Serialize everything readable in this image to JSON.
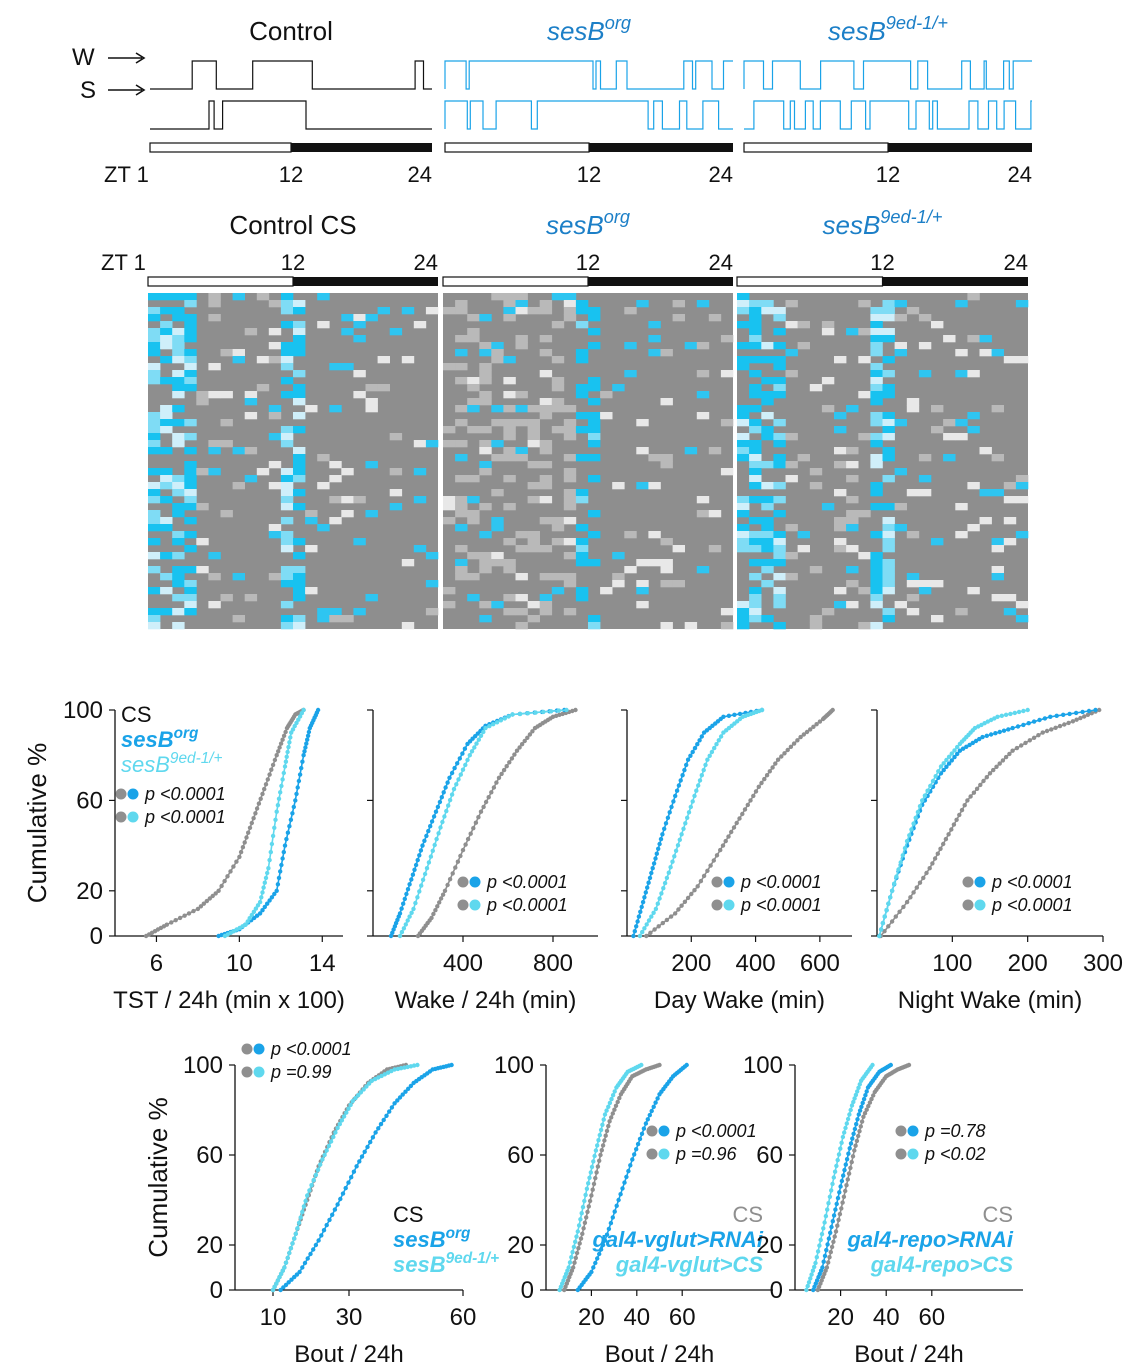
{
  "colors": {
    "control": "#111111",
    "ses_org": "#1aa3e8",
    "ses_9ed": "#5fd8ee",
    "cs_gray": "#8f8f8f",
    "heat_base": "#8e8e8e",
    "title_blue": "#1c7fc7"
  },
  "traces": {
    "titles": [
      {
        "main": "Control",
        "sup": ""
      },
      {
        "main": "sesB",
        "sup": "org"
      },
      {
        "main": "sesB",
        "sup": "9ed-1/+"
      }
    ],
    "w_label": "W",
    "s_label": "S",
    "zt_label": "ZT 1",
    "ticks": [
      "12",
      "24"
    ]
  },
  "heatmaps": {
    "titles": [
      {
        "main": "Control CS",
        "sup": ""
      },
      {
        "main": "sesB",
        "sup": "org"
      },
      {
        "main": "sesB",
        "sup": "9ed-1/+"
      }
    ],
    "zt_label": "ZT 1",
    "ticks": [
      "12",
      "24"
    ]
  },
  "legend_top": {
    "entries": [
      {
        "main": "CS",
        "sup": ""
      },
      {
        "main": "sesB",
        "sup": "org"
      },
      {
        "main": "sesB",
        "sup": "9ed-1/+"
      }
    ]
  },
  "chart_data": [
    {
      "type": "line",
      "panel": "TST",
      "xlabel": "TST / 24h (min x 100)",
      "ylabel": "Cumulative %",
      "xlim": [
        4,
        15
      ],
      "xticks": [
        6,
        10,
        14
      ],
      "ylim": [
        0,
        100
      ],
      "yticks": [
        0,
        20,
        60,
        100
      ],
      "stats": [
        "p <0.0001",
        "p <0.0001"
      ],
      "series": [
        {
          "name": "CS",
          "x": [
            5.5,
            6.5,
            8,
            9,
            10,
            10.6,
            11.2,
            11.8,
            12.3,
            12.7,
            13.1
          ],
          "y": [
            0,
            5,
            12,
            20,
            35,
            50,
            65,
            80,
            92,
            98,
            100
          ]
        },
        {
          "name": "sesB org",
          "x": [
            9,
            10,
            11,
            11.8,
            12.2,
            12.7,
            13.1,
            13.4,
            13.8
          ],
          "y": [
            0,
            3,
            10,
            20,
            40,
            60,
            80,
            92,
            100
          ]
        },
        {
          "name": "sesB 9ed-1/+",
          "x": [
            9.3,
            10.3,
            11,
            11.4,
            11.8,
            12.2,
            12.5,
            13.1
          ],
          "y": [
            0,
            5,
            15,
            30,
            55,
            75,
            90,
            100
          ]
        }
      ]
    },
    {
      "type": "line",
      "panel": "Wake",
      "xlabel": "Wake / 24h (min)",
      "ylabel": "",
      "xlim": [
        0,
        1000
      ],
      "xticks": [
        400,
        800
      ],
      "ylim": [
        0,
        100
      ],
      "yticks": [],
      "stats": [
        "p <0.0001",
        "p <0.0001"
      ],
      "series": [
        {
          "name": "CS",
          "x": [
            200,
            260,
            320,
            400,
            480,
            560,
            640,
            720,
            800,
            900
          ],
          "y": [
            0,
            8,
            20,
            38,
            55,
            70,
            82,
            92,
            97,
            100
          ]
        },
        {
          "name": "sesB org",
          "x": [
            80,
            120,
            170,
            220,
            280,
            340,
            420,
            500,
            620,
            850
          ],
          "y": [
            0,
            10,
            25,
            40,
            55,
            70,
            85,
            93,
            98,
            100
          ]
        },
        {
          "name": "sesB 9ed-1/+",
          "x": [
            120,
            180,
            240,
            300,
            360,
            430,
            500,
            620,
            860
          ],
          "y": [
            0,
            12,
            30,
            48,
            65,
            80,
            92,
            98,
            100
          ]
        }
      ]
    },
    {
      "type": "line",
      "panel": "Day Wake",
      "xlabel": "Day Wake (min)",
      "ylabel": "",
      "xlim": [
        0,
        700
      ],
      "xticks": [
        200,
        400,
        600
      ],
      "ylim": [
        0,
        100
      ],
      "yticks": [],
      "stats": [
        "p <0.0001",
        "p <0.0001"
      ],
      "series": [
        {
          "name": "CS",
          "x": [
            60,
            150,
            220,
            290,
            350,
            410,
            470,
            540,
            610,
            640
          ],
          "y": [
            0,
            10,
            22,
            38,
            52,
            66,
            78,
            88,
            96,
            100
          ]
        },
        {
          "name": "sesB org",
          "x": [
            20,
            50,
            80,
            110,
            150,
            190,
            240,
            300,
            420
          ],
          "y": [
            0,
            15,
            30,
            45,
            62,
            78,
            90,
            97,
            100
          ]
        },
        {
          "name": "sesB 9ed-1/+",
          "x": [
            40,
            90,
            130,
            170,
            210,
            250,
            300,
            360,
            420
          ],
          "y": [
            0,
            12,
            28,
            45,
            62,
            78,
            90,
            97,
            100
          ]
        }
      ]
    },
    {
      "type": "line",
      "panel": "Night Wake",
      "xlabel": "Night Wake (min)",
      "ylabel": "",
      "xlim": [
        0,
        300
      ],
      "xticks": [
        100,
        200,
        300
      ],
      "ylim": [
        0,
        100
      ],
      "yticks": [],
      "stats": [
        "p <0.0001",
        "p <0.0001"
      ],
      "series": [
        {
          "name": "CS",
          "x": [
            5,
            40,
            70,
            95,
            120,
            150,
            180,
            220,
            260,
            295
          ],
          "y": [
            0,
            15,
            30,
            45,
            60,
            72,
            82,
            90,
            95,
            100
          ]
        },
        {
          "name": "sesB org",
          "x": [
            3,
            20,
            40,
            60,
            85,
            110,
            140,
            180,
            230,
            290
          ],
          "y": [
            0,
            20,
            40,
            58,
            72,
            82,
            88,
            92,
            97,
            100
          ]
        },
        {
          "name": "sesB 9ed-1/+",
          "x": [
            3,
            20,
            40,
            60,
            85,
            110,
            130,
            160,
            200
          ],
          "y": [
            0,
            20,
            42,
            60,
            75,
            85,
            92,
            97,
            100
          ]
        }
      ]
    },
    {
      "type": "line",
      "panel": "Bout A",
      "xlabel": "Bout / 24h",
      "ylabel": "Cumulative %",
      "xlim": [
        0,
        60
      ],
      "xticks": [
        10,
        30,
        60
      ],
      "ylim": [
        0,
        100
      ],
      "yticks": [
        0,
        20,
        60,
        100
      ],
      "stats": [
        "p <0.0001",
        "p =0.99"
      ],
      "legend": [
        {
          "main": "CS",
          "sup": ""
        },
        {
          "main": "sesB",
          "sup": "org"
        },
        {
          "main": "sesB",
          "sup": "9ed-1/+"
        }
      ],
      "series": [
        {
          "name": "CS",
          "x": [
            10,
            13,
            16,
            19,
            22,
            26,
            30,
            35,
            40,
            45
          ],
          "y": [
            0,
            10,
            25,
            40,
            55,
            70,
            82,
            92,
            98,
            100
          ]
        },
        {
          "name": "sesB org",
          "x": [
            12,
            17,
            22,
            27,
            32,
            37,
            42,
            47,
            52,
            57
          ],
          "y": [
            0,
            8,
            22,
            38,
            55,
            70,
            83,
            92,
            98,
            100
          ]
        },
        {
          "name": "sesB 9ed-1/+",
          "x": [
            10,
            13,
            16,
            19,
            23,
            27,
            31,
            36,
            42,
            48
          ],
          "y": [
            0,
            10,
            25,
            42,
            58,
            72,
            84,
            93,
            98,
            100
          ]
        }
      ]
    },
    {
      "type": "line",
      "panel": "Bout B",
      "xlabel": "Bout / 24h",
      "ylabel": "",
      "xlim": [
        0,
        100
      ],
      "xticks": [
        20,
        40,
        60
      ],
      "ylim": [
        0,
        100
      ],
      "yticks": [
        0,
        20,
        60,
        100
      ],
      "stats": [
        "p <0.0001",
        "p =0.96"
      ],
      "legend": [
        {
          "main": "CS",
          "sup": ""
        },
        {
          "main": "gal4-vglut>RNAi",
          "sup": ""
        },
        {
          "main": "gal4-vglut>CS",
          "sup": ""
        }
      ],
      "series": [
        {
          "name": "CS",
          "x": [
            8,
            12,
            16,
            20,
            24,
            28,
            33,
            38,
            44,
            50
          ],
          "y": [
            0,
            10,
            25,
            42,
            60,
            75,
            87,
            95,
            98,
            100
          ]
        },
        {
          "name": "gal4-vglut>RNAi",
          "x": [
            14,
            20,
            26,
            32,
            38,
            44,
            50,
            56,
            62
          ],
          "y": [
            0,
            8,
            22,
            40,
            58,
            74,
            87,
            95,
            100
          ]
        },
        {
          "name": "gal4-vglut>CS",
          "x": [
            6,
            10,
            14,
            18,
            22,
            26,
            31,
            36,
            42
          ],
          "y": [
            0,
            10,
            26,
            45,
            62,
            78,
            90,
            97,
            100
          ]
        }
      ]
    },
    {
      "type": "line",
      "panel": "Bout C",
      "xlabel": "Bout / 24h",
      "ylabel": "",
      "xlim": [
        0,
        100
      ],
      "xticks": [
        20,
        40,
        60
      ],
      "ylim": [
        0,
        100
      ],
      "yticks": [
        0,
        20,
        60,
        100
      ],
      "stats": [
        "p =0.78",
        "p <0.02"
      ],
      "legend": [
        {
          "main": "CS",
          "sup": ""
        },
        {
          "main": "gal4-repo>RNAi",
          "sup": ""
        },
        {
          "main": "gal4-repo>CS",
          "sup": ""
        }
      ],
      "series": [
        {
          "name": "CS",
          "x": [
            10,
            14,
            18,
            22,
            26,
            30,
            35,
            40,
            45,
            50
          ],
          "y": [
            0,
            10,
            26,
            44,
            62,
            77,
            88,
            95,
            98,
            100
          ]
        },
        {
          "name": "gal4-repo>RNAi",
          "x": [
            8,
            12,
            16,
            20,
            24,
            28,
            32,
            37,
            42
          ],
          "y": [
            0,
            10,
            28,
            46,
            63,
            78,
            90,
            97,
            100
          ]
        },
        {
          "name": "gal4-repo>CS",
          "x": [
            5,
            9,
            13,
            17,
            21,
            25,
            29,
            34
          ],
          "y": [
            0,
            12,
            30,
            50,
            68,
            82,
            93,
            100
          ]
        }
      ]
    }
  ]
}
